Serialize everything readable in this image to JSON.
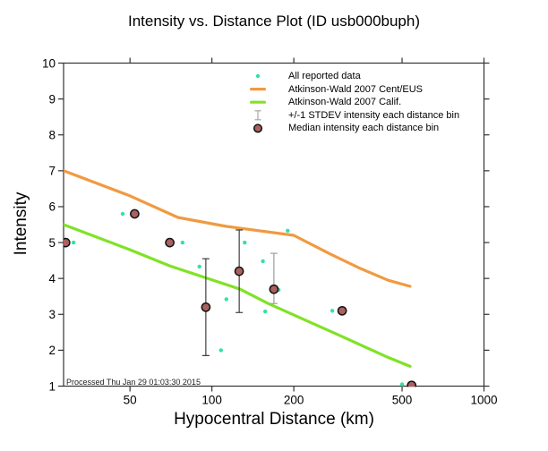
{
  "title": "Intensity vs. Distance Plot (ID usb000buph)",
  "footnote": "Processed Thu Jan 29 01:03:30 2015",
  "colors": {
    "reported_data": "#2FE3A1",
    "cent_eus_curve": "#F09A42",
    "calif_curve": "#80E226",
    "stdev_bar_dark": "#3F3F3F",
    "stdev_bar_light": "#9C9C9C",
    "median_fill": "#AC6060",
    "axis": "#333333"
  },
  "legend": {
    "items": [
      {
        "label": "All reported data",
        "symbol": "dot",
        "color": "#2FE3A1"
      },
      {
        "label": "Atkinson-Wald 2007 Cent/EUS",
        "symbol": "line",
        "color": "#F09A42"
      },
      {
        "label": "Atkinson-Wald 2007 Calif.",
        "symbol": "line",
        "color": "#80E226"
      },
      {
        "label": "+/-1 STDEV intensity each distance bin",
        "symbol": "errorbar",
        "color": "#A6A6A6"
      },
      {
        "label": "Median intensity each distance bin",
        "symbol": "circle",
        "color": "#AC6060"
      }
    ]
  },
  "chart_data": {
    "type": "scatter",
    "title": "Intensity vs. Distance Plot (ID usb000buph)",
    "xlabel": "Hypocentral Distance (km)",
    "ylabel": "Intensity",
    "xscale": "log",
    "xlim": [
      28.5,
      1000
    ],
    "ylim": [
      1,
      10
    ],
    "x_ticks": [
      50,
      100,
      200,
      500,
      1000
    ],
    "y_ticks": [
      1,
      2,
      3,
      4,
      5,
      6,
      7,
      8,
      9,
      10
    ],
    "grid": false,
    "legend_position": "top-center-inside",
    "series": [
      {
        "name": "All reported data",
        "kind": "scatter",
        "color": "#2FE3A1",
        "marker_radius": 2.2,
        "points": [
          [
            31,
            5.0
          ],
          [
            47,
            5.8
          ],
          [
            78,
            5.0
          ],
          [
            90,
            4.33
          ],
          [
            108,
            2.0
          ],
          [
            113,
            3.42
          ],
          [
            132,
            5.0
          ],
          [
            154,
            4.48
          ],
          [
            157,
            3.08
          ],
          [
            176,
            3.68
          ],
          [
            190,
            5.33
          ],
          [
            277,
            3.1
          ],
          [
            500,
            1.05
          ]
        ]
      },
      {
        "name": "Atkinson-Wald 2007 Cent/EUS",
        "kind": "line",
        "color": "#F09A42",
        "width": 3.2,
        "points": [
          [
            28.5,
            7.0
          ],
          [
            50,
            6.3
          ],
          [
            75,
            5.7
          ],
          [
            113,
            5.45
          ],
          [
            200,
            5.2
          ],
          [
            269,
            4.7
          ],
          [
            346,
            4.3
          ],
          [
            444,
            3.95
          ],
          [
            535,
            3.78
          ]
        ]
      },
      {
        "name": "Atkinson-Wald 2007 Calif.",
        "kind": "line",
        "color": "#80E226",
        "width": 3.2,
        "points": [
          [
            28.5,
            5.5
          ],
          [
            50,
            4.8
          ],
          [
            70,
            4.35
          ],
          [
            127,
            3.7
          ],
          [
            161,
            3.3
          ],
          [
            297,
            2.4
          ],
          [
            444,
            1.8
          ],
          [
            535,
            1.55
          ]
        ]
      },
      {
        "name": "+/-1 STDEV intensity each distance bin",
        "kind": "errorbars",
        "color": "#A6A6A6",
        "bars": [
          {
            "x": 95,
            "lo": 1.85,
            "hi": 4.55,
            "color": "#3F3F3F"
          },
          {
            "x": 126,
            "lo": 3.05,
            "hi": 5.35,
            "color": "#3F3F3F"
          },
          {
            "x": 169,
            "lo": 3.3,
            "hi": 4.7,
            "color": "#9C9C9C"
          }
        ]
      },
      {
        "name": "Median intensity each distance bin",
        "kind": "scatter",
        "color": "#AC6060",
        "stroke": "#111111",
        "marker_radius": 4.6,
        "points": [
          [
            29,
            5.0
          ],
          [
            52,
            5.8
          ],
          [
            70,
            5.0
          ],
          [
            95,
            3.2
          ],
          [
            126,
            4.2
          ],
          [
            169,
            3.7
          ],
          [
            301,
            3.1
          ],
          [
            542,
            1.02
          ]
        ]
      }
    ]
  }
}
